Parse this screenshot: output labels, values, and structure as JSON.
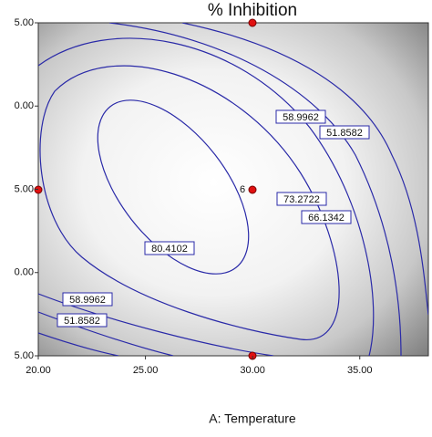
{
  "chart_data": {
    "type": "contour",
    "title": "% Inhibition",
    "x_label": "A: Temperature",
    "xlim": [
      20,
      38.2
    ],
    "xticks": [
      {
        "value": 20,
        "label": "20.00"
      },
      {
        "value": 25,
        "label": "25.00"
      },
      {
        "value": 30,
        "label": "30.00"
      },
      {
        "value": 35,
        "label": "35.00"
      }
    ],
    "y_tick_labels": [
      "5.00",
      "0.00",
      "5.00",
      "0.00",
      "5.00"
    ],
    "levels": [
      51.8582,
      58.9962,
      66.1342,
      73.2722,
      80.4102
    ],
    "line_color": "#2a2aa8",
    "point_color": "#e01010",
    "point_label": "6"
  }
}
